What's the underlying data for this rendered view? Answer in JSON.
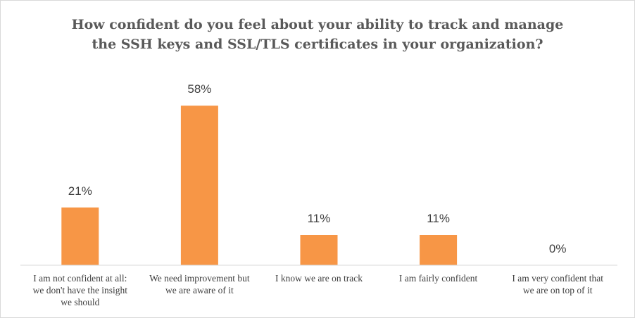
{
  "chart_data": {
    "type": "bar",
    "title_lines": [
      "How confident do you feel about your ability to track and manage",
      "the SSH keys and SSL/TLS certificates in your organization?"
    ],
    "categories": [
      [
        "I am not confident at all:",
        "we don't have the insight",
        "we should"
      ],
      [
        "We need improvement but",
        "we are aware of it"
      ],
      [
        "I know we are on track"
      ],
      [
        "I am fairly confident"
      ],
      [
        "I am very confident that",
        "we are on top of it"
      ]
    ],
    "values": [
      21,
      58,
      11,
      11,
      0
    ],
    "data_labels": [
      "21%",
      "58%",
      "11%",
      "11%",
      "0%"
    ],
    "ylim": [
      0,
      67
    ],
    "bar_color": "#F79646",
    "axis_color": "#d9d9d9",
    "grid": false,
    "legend": "none"
  }
}
